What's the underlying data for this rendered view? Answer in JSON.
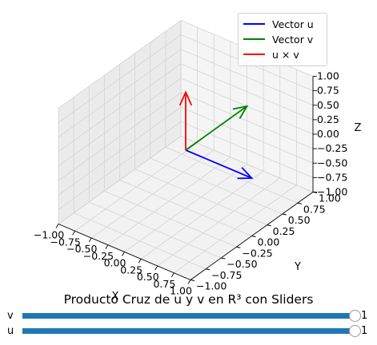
{
  "figure": {
    "title": "Producto Cruz de u y v en R³ con Sliders"
  },
  "legend": {
    "items": [
      {
        "label": "Vector u",
        "color": "#0000ff"
      },
      {
        "label": "Vector v",
        "color": "#008000"
      },
      {
        "label": "u × v",
        "color": "#ff0000"
      }
    ]
  },
  "sliders": {
    "v": {
      "label": "v",
      "value": "1"
    },
    "u": {
      "label": "u",
      "value": "1"
    }
  },
  "chart_data": {
    "type": "line",
    "projection": "3d",
    "xlabel": "X",
    "ylabel": "Y",
    "zlabel": "Z",
    "xlim": [
      -1.0,
      1.0
    ],
    "ylim": [
      -1.0,
      1.0
    ],
    "zlim": [
      -1.0,
      1.0
    ],
    "xticks": [
      "−1.00",
      "−0.75",
      "−0.50",
      "−0.25",
      "0.00",
      "0.25",
      "0.50",
      "0.75",
      "1.00"
    ],
    "yticks": [
      "−1.00",
      "−0.75",
      "−0.50",
      "−0.25",
      "0.00",
      "0.25",
      "0.50",
      "0.75",
      "1.00"
    ],
    "zticks": [
      "−1.00",
      "−0.75",
      "−0.50",
      "−0.25",
      "0.00",
      "0.25",
      "0.50",
      "0.75",
      "1.00"
    ],
    "grid": true,
    "legend_position": "top-right",
    "series": [
      {
        "name": "Vector u",
        "color": "#0000ff",
        "start": [
          0,
          0,
          0
        ],
        "end": [
          1,
          0,
          0
        ]
      },
      {
        "name": "Vector v",
        "color": "#008000",
        "start": [
          0,
          0,
          0
        ],
        "end": [
          0,
          1,
          0
        ]
      },
      {
        "name": "u × v",
        "color": "#ff0000",
        "start": [
          0,
          0,
          0
        ],
        "end": [
          0,
          0,
          1
        ]
      }
    ]
  }
}
